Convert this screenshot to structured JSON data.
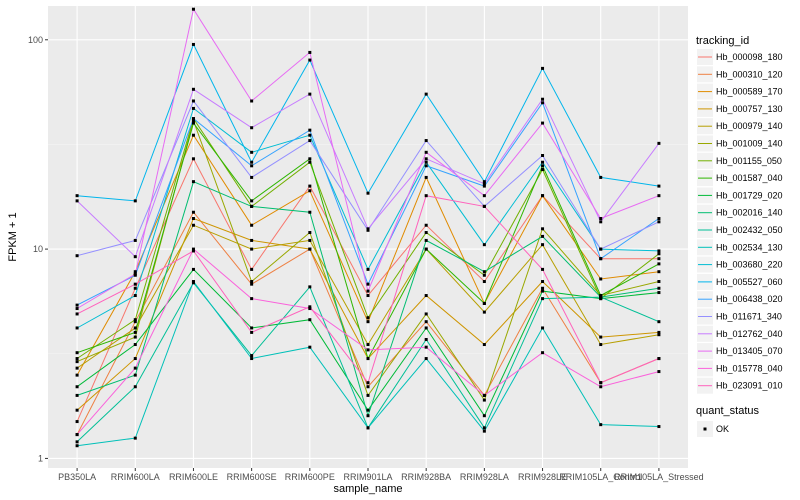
{
  "chart_data": {
    "type": "line",
    "xlabel": "sample_name",
    "ylabel": "FPKM + 1",
    "y_scale": "log10",
    "ylim": [
      0.9,
      145
    ],
    "y_ticks": [
      1,
      10,
      100
    ],
    "y_tick_labels": [
      "1",
      "10",
      "100"
    ],
    "grid": true,
    "legend_position": "right",
    "categories": [
      "PB350LA",
      "RRIM600LA",
      "RRIM600LE",
      "RRIM600SE",
      "RRIM600PE",
      "RRIM901LA",
      "RRIM928BA",
      "RRIM928LA",
      "RRIM928LE",
      "RRIM105LA_Control",
      "RRIM105LA_Stressed"
    ],
    "legend_title": "tracking_id",
    "shape_legend_title": "quant_status",
    "shape_legend_items": [
      "OK"
    ],
    "series": [
      {
        "name": "Hb_000098_180",
        "color": "#F8766D",
        "values": [
          1.5,
          6.5,
          27,
          8,
          20,
          6,
          13,
          7,
          18,
          9,
          9
        ]
      },
      {
        "name": "Hb_000310_120",
        "color": "#EE8043",
        "values": [
          1.3,
          4.5,
          15,
          6.8,
          10,
          2.2,
          4.5,
          2.0,
          6.5,
          2.3,
          3.0
        ]
      },
      {
        "name": "Hb_000589_170",
        "color": "#E08B00",
        "values": [
          2.5,
          7.8,
          35,
          13,
          19,
          4.5,
          22,
          5.5,
          18,
          7.2,
          7.8
        ]
      },
      {
        "name": "Hb_000757_130",
        "color": "#CE9500",
        "values": [
          1.7,
          3.0,
          14,
          11,
          10,
          3.0,
          6.0,
          3.5,
          7.0,
          3.8,
          4.0
        ]
      },
      {
        "name": "Hb_000979_140",
        "color": "#B79F00",
        "values": [
          2.7,
          4.2,
          13,
          10,
          11,
          3.5,
          10,
          5.0,
          10.5,
          3.5,
          3.9
        ]
      },
      {
        "name": "Hb_001009_140",
        "color": "#99A800",
        "values": [
          2.9,
          3.8,
          41,
          7,
          12,
          2.0,
          4.9,
          1.9,
          12.5,
          6.0,
          7.0
        ]
      },
      {
        "name": "Hb_001155_050",
        "color": "#72B000",
        "values": [
          3.0,
          4.6,
          42,
          16,
          26,
          4.7,
          12,
          7.5,
          24,
          5.8,
          9.5
        ]
      },
      {
        "name": "Hb_001587_040",
        "color": "#2EB600",
        "values": [
          3.2,
          4.0,
          40,
          17,
          27,
          3.0,
          10,
          5.5,
          25,
          6.0,
          8.5
        ]
      },
      {
        "name": "Hb_001729_020",
        "color": "#00BA38",
        "values": [
          2.2,
          3.5,
          8,
          4.2,
          4.6,
          1.7,
          4.2,
          1.6,
          6.3,
          5.8,
          6.2
        ]
      },
      {
        "name": "Hb_002016_140",
        "color": "#00BD70",
        "values": [
          2.0,
          2.5,
          21,
          16,
          15,
          1.6,
          11,
          7.8,
          11.5,
          5.9,
          6.5
        ]
      },
      {
        "name": "Hb_002432_050",
        "color": "#00BF96",
        "values": [
          1.2,
          2.2,
          6.9,
          3.1,
          6.6,
          1.4,
          3.7,
          1.4,
          5.8,
          5.9,
          4.5
        ]
      },
      {
        "name": "Hb_002534_130",
        "color": "#00C0B8",
        "values": [
          1.15,
          1.25,
          7,
          3.0,
          3.4,
          1.4,
          3.0,
          1.35,
          4.2,
          1.45,
          1.42
        ]
      },
      {
        "name": "Hb_003680_220",
        "color": "#00BDD3",
        "values": [
          4.2,
          6.0,
          47,
          29,
          35,
          8,
          26,
          10.5,
          26,
          10,
          9.8
        ]
      },
      {
        "name": "Hb_005527_060",
        "color": "#00B5EB",
        "values": [
          18,
          17,
          95,
          26,
          80,
          18.5,
          55,
          21,
          73,
          22,
          20
        ]
      },
      {
        "name": "Hb_006438_020",
        "color": "#35A2FF",
        "values": [
          5.4,
          7.5,
          42,
          25,
          37,
          6.8,
          25,
          20,
          50,
          9,
          14
        ]
      },
      {
        "name": "Hb_011671_340",
        "color": "#9590FF",
        "values": [
          9.3,
          11,
          51,
          22,
          33,
          12.3,
          33,
          16,
          28,
          10,
          13.5
        ]
      },
      {
        "name": "Hb_012762_040",
        "color": "#C77CFF",
        "values": [
          17,
          9.2,
          58,
          38,
          55,
          12.5,
          27,
          20.5,
          52,
          13.5,
          32
        ]
      },
      {
        "name": "Hb_013405_070",
        "color": "#E76BF3",
        "values": [
          5.2,
          7.6,
          140,
          51,
          87,
          6.3,
          29,
          18,
          40,
          14,
          18
        ]
      },
      {
        "name": "Hb_015778_040",
        "color": "#FA62DB",
        "values": [
          1.3,
          2.7,
          10,
          5.8,
          5.2,
          3.3,
          3.4,
          2.0,
          3.2,
          2.2,
          2.6
        ]
      },
      {
        "name": "Hb_023091_010",
        "color": "#FF62BC",
        "values": [
          4.9,
          6.8,
          9.8,
          4.0,
          5.3,
          2.3,
          18,
          16,
          8,
          2.3,
          3.0
        ]
      }
    ]
  }
}
